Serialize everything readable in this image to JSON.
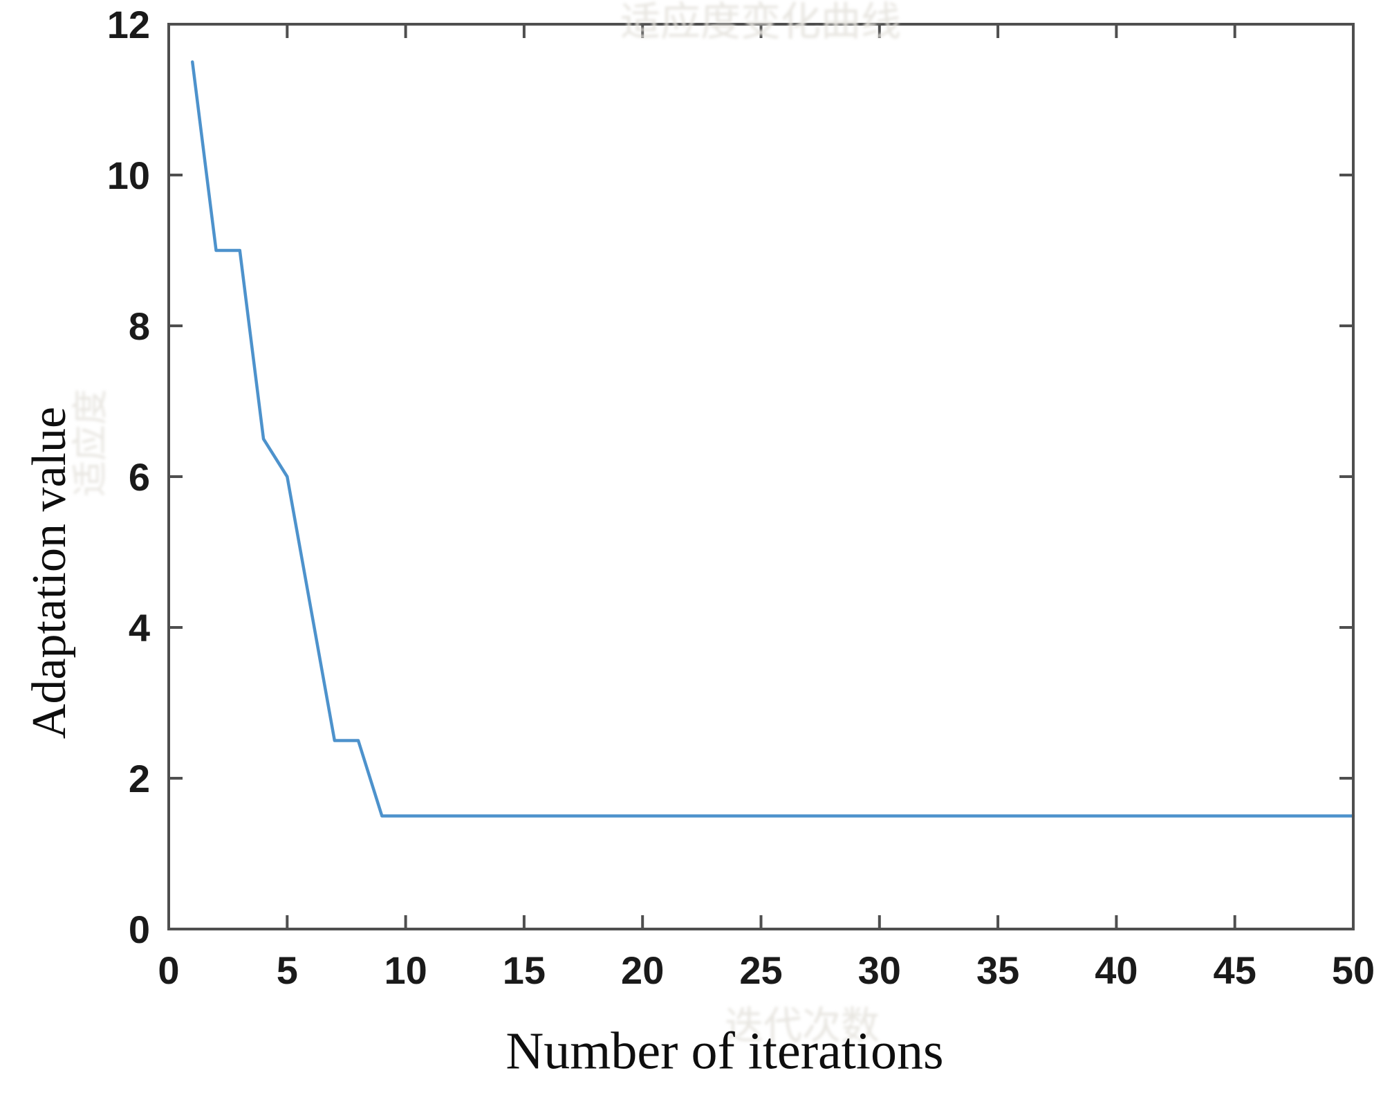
{
  "figure": {
    "xlabel": "Number of iterations",
    "ylabel": "Adaptation value",
    "watermark_top": "适应度变化曲线",
    "watermark_bottom": "迭代次数",
    "watermark_left": "适应度"
  },
  "chart_data": {
    "type": "line",
    "title": "",
    "xlabel": "Number of iterations",
    "ylabel": "Adaptation value",
    "xlim": [
      0,
      50
    ],
    "ylim": [
      0,
      12
    ],
    "xticks": [
      0,
      5,
      10,
      15,
      20,
      25,
      30,
      35,
      40,
      45,
      50
    ],
    "yticks": [
      0,
      2,
      4,
      6,
      8,
      10,
      12
    ],
    "grid": false,
    "legend": "none",
    "box": true,
    "axis_color": "#4f4f4f",
    "tick_text_color": "#1a1a1a",
    "line_color": "#4d92cc",
    "line_width": 4.5,
    "x": [
      1,
      2,
      3,
      4,
      5,
      6,
      7,
      8,
      9,
      10,
      11,
      12,
      13,
      14,
      15,
      16,
      17,
      18,
      19,
      20,
      21,
      22,
      23,
      24,
      25,
      26,
      27,
      28,
      29,
      30,
      31,
      32,
      33,
      34,
      35,
      36,
      37,
      38,
      39,
      40,
      41,
      42,
      43,
      44,
      45,
      46,
      47,
      48,
      49,
      50
    ],
    "series": [
      {
        "name": "Adaptation value",
        "values": [
          11.5,
          9,
          9,
          6.5,
          6,
          4.25,
          2.5,
          2.5,
          1.5,
          1.5,
          1.5,
          1.5,
          1.5,
          1.5,
          1.5,
          1.5,
          1.5,
          1.5,
          1.5,
          1.5,
          1.5,
          1.5,
          1.5,
          1.5,
          1.5,
          1.5,
          1.5,
          1.5,
          1.5,
          1.5,
          1.5,
          1.5,
          1.5,
          1.5,
          1.5,
          1.5,
          1.5,
          1.5,
          1.5,
          1.5,
          1.5,
          1.5,
          1.5,
          1.5,
          1.5,
          1.5,
          1.5,
          1.5,
          1.5,
          1.5
        ]
      }
    ]
  }
}
